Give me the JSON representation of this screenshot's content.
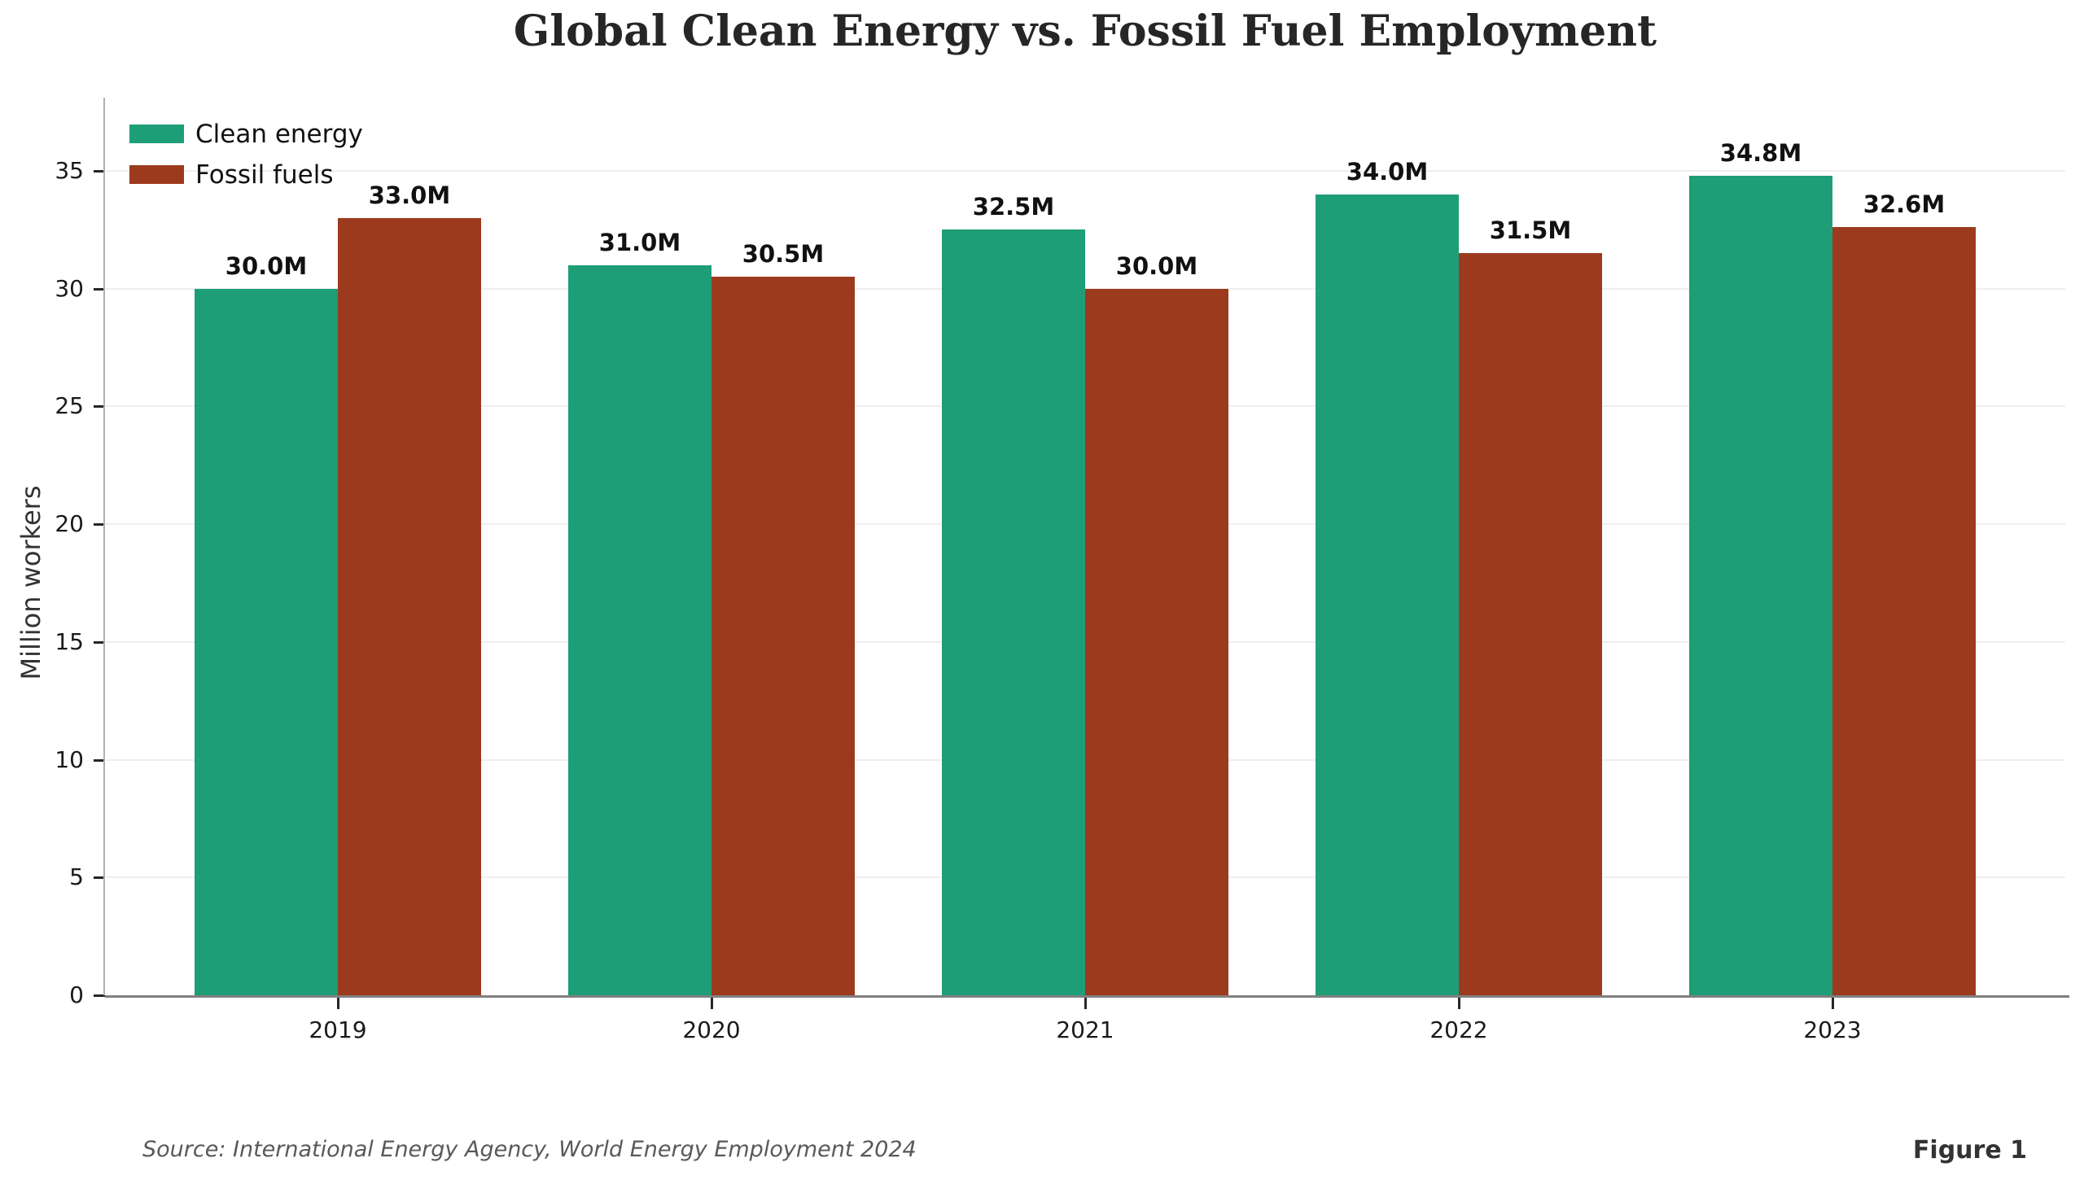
{
  "chart_data": {
    "type": "bar",
    "title": "Global Clean Energy vs. Fossil Fuel Employment",
    "xlabel": "",
    "ylabel": "Million workers",
    "categories": [
      "2019",
      "2020",
      "2021",
      "2022",
      "2023"
    ],
    "series": [
      {
        "name": "Clean energy",
        "color": "#1e9e77",
        "values": [
          30.0,
          31.0,
          32.5,
          34.0,
          34.8
        ],
        "value_labels": [
          "30.0M",
          "31.0M",
          "32.5M",
          "34.0M",
          "34.8M"
        ]
      },
      {
        "name": "Fossil fuels",
        "color": "#9c3a1e",
        "values": [
          33.0,
          30.5,
          30.0,
          31.5,
          32.6
        ],
        "value_labels": [
          "33.0M",
          "30.5M",
          "30.0M",
          "31.5M",
          "32.6M"
        ]
      }
    ],
    "yticks": [
      0,
      5,
      10,
      15,
      20,
      25,
      30,
      35
    ],
    "ylim": [
      0,
      38
    ],
    "grid": "horizontal",
    "legend_position": "upper-left"
  },
  "footer": {
    "source": "Source: International Energy Agency, World Energy Employment 2024",
    "figure_label": "Figure 1"
  }
}
